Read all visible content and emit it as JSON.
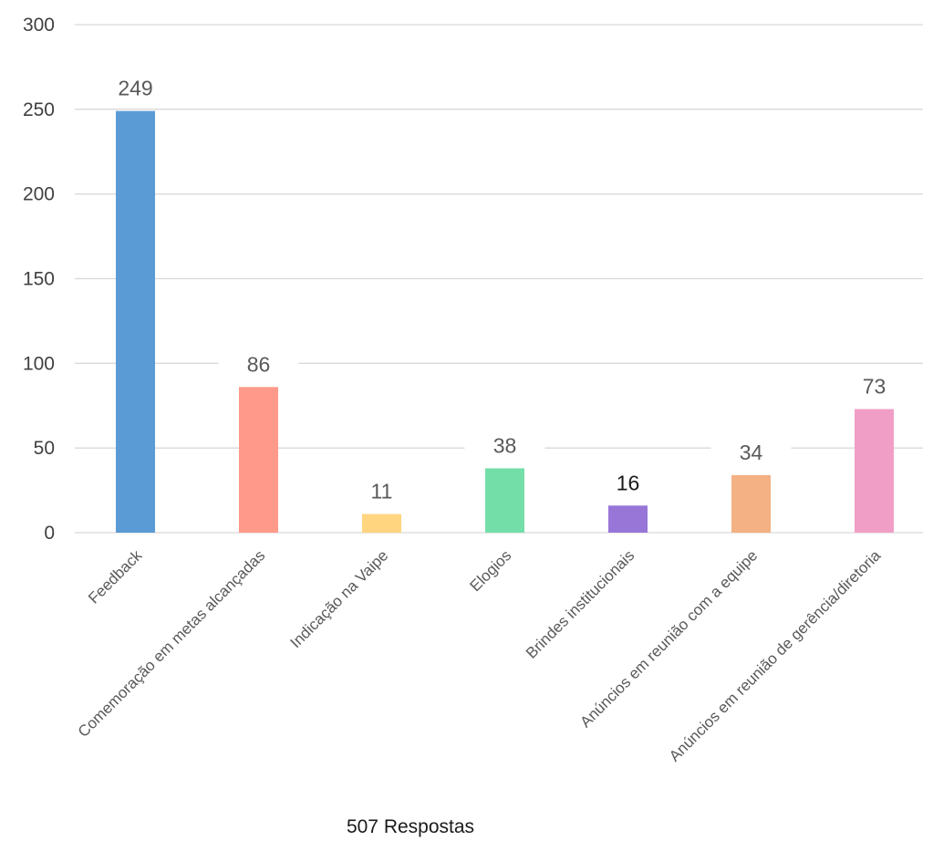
{
  "chart_data": {
    "type": "bar",
    "categories": [
      "Feedback",
      "Comemoração em metas alcançadas",
      "Indicação na Vaipe",
      "Elogios",
      "Brindes institucionais",
      "Anúncios em reunião com a equipe",
      "Anúncios em reunião de gerência/diretoria"
    ],
    "values": [
      249,
      86,
      11,
      38,
      16,
      34,
      73
    ],
    "colors": [
      "#5b9bd5",
      "#ff9a8a",
      "#ffd580",
      "#74dea8",
      "#9776d8",
      "#f4b183",
      "#f19ec6"
    ],
    "data_label_colors": [
      "#595959",
      "#595959",
      "#595959",
      "#595959",
      "#1a1a1a",
      "#595959",
      "#595959"
    ],
    "yticks": [
      0,
      50,
      100,
      150,
      200,
      250,
      300
    ],
    "ylim": [
      0,
      300
    ],
    "grid": true,
    "legend": "none",
    "caption": "507 Respostas"
  }
}
